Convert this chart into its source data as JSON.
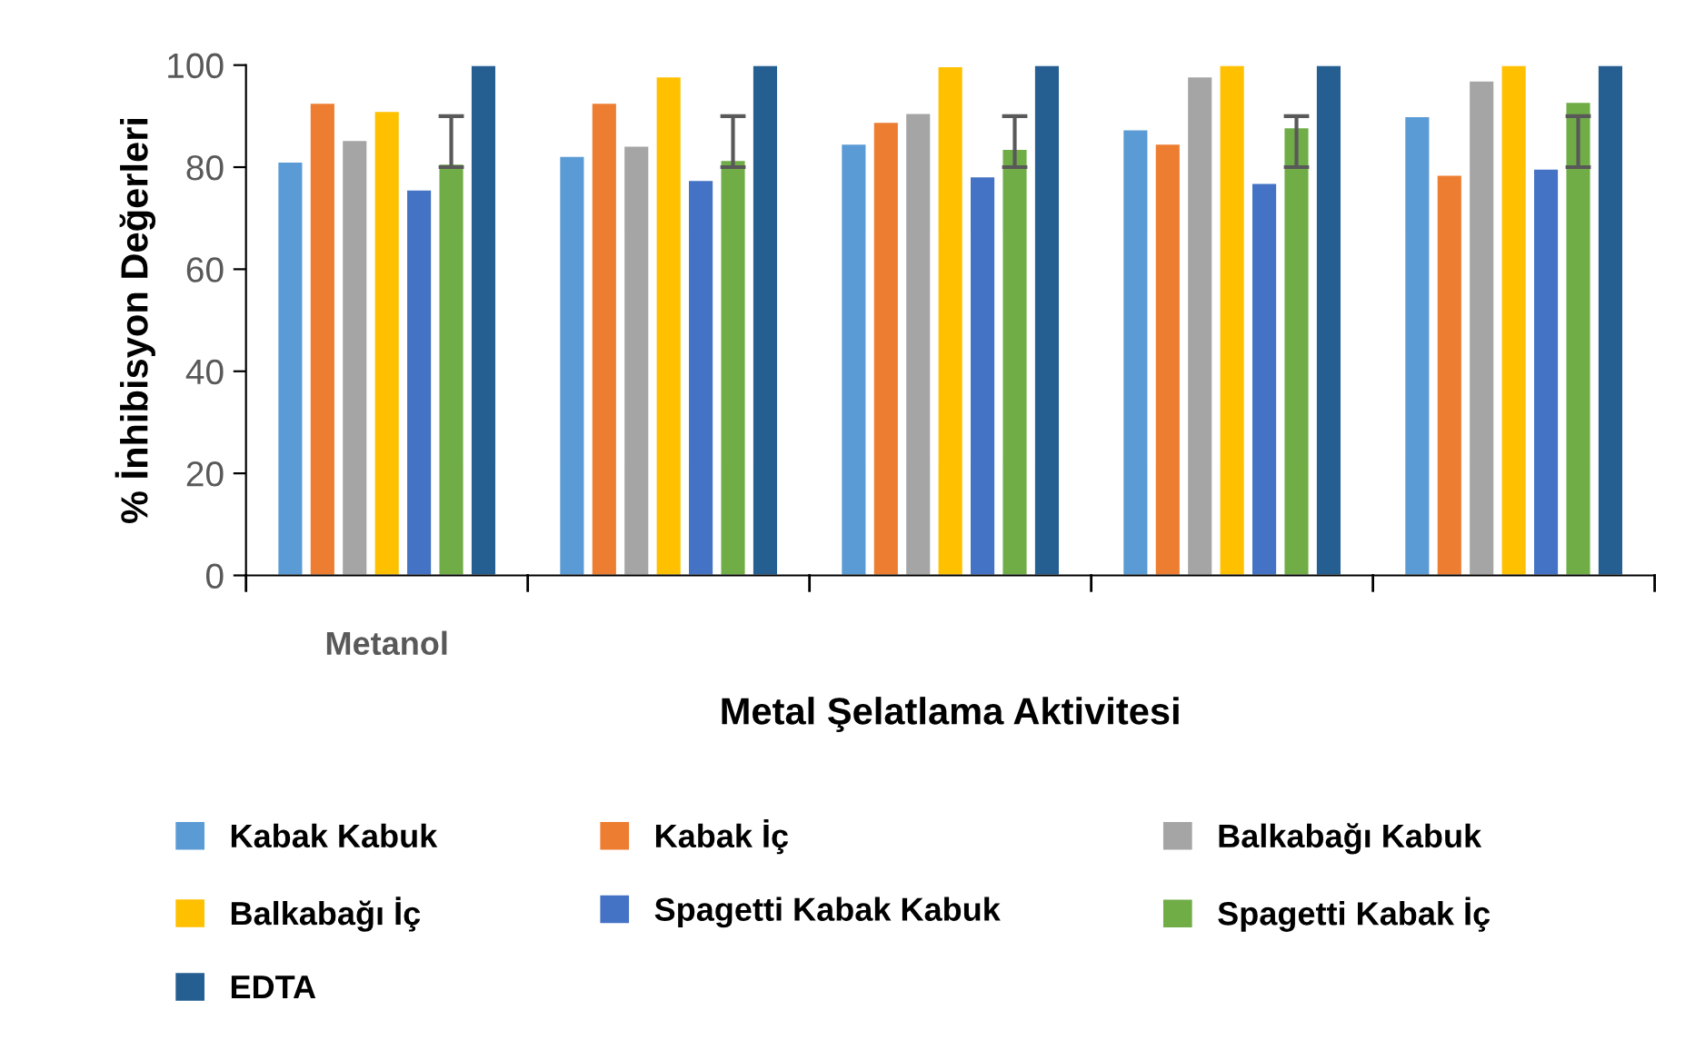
{
  "chart_data": {
    "type": "bar",
    "xlabel": "Metal Şelatlama Aktivitesi",
    "ylabel": "% İnhibisyon Değerleri",
    "categories": [
      "Metanol",
      null,
      null,
      null,
      null
    ],
    "series": [
      {
        "name": "Kabak Kabuk",
        "color": "#5b9bd5",
        "values": [
          81.1,
          82.2,
          84.6,
          87.4,
          90.0
        ]
      },
      {
        "name": "Kabak İç",
        "color": "#ed7d31",
        "values": [
          92.6,
          92.6,
          88.9,
          84.6,
          78.5
        ]
      },
      {
        "name": "Balkabağı Kabuk",
        "color": "#a5a5a5",
        "values": [
          85.3,
          84.2,
          90.6,
          97.8,
          97.0
        ]
      },
      {
        "name": "Balkabağı İç",
        "color": "#ffc000",
        "values": [
          91.0,
          97.8,
          99.8,
          100,
          100
        ]
      },
      {
        "name": "Spagetti Kabak Kabuk",
        "color": "#4472c4",
        "values": [
          75.6,
          77.5,
          78.2,
          76.9,
          79.7
        ]
      },
      {
        "name": "Spagetti Kabak İç",
        "color": "#70ad47",
        "values": [
          80.7,
          81.4,
          83.6,
          87.8,
          92.8
        ],
        "errors": [
          [
            80,
            90
          ],
          [
            80,
            90
          ],
          [
            80,
            90
          ],
          [
            80,
            90
          ],
          [
            80,
            90
          ]
        ]
      },
      {
        "name": "EDTA",
        "color": "#255e91",
        "values": [
          100,
          100,
          100,
          100,
          100
        ]
      }
    ],
    "ylim": [
      0,
      100
    ],
    "yticks": [
      0,
      20,
      40,
      60,
      80,
      100
    ],
    "grid": false,
    "legend": "bottom"
  }
}
